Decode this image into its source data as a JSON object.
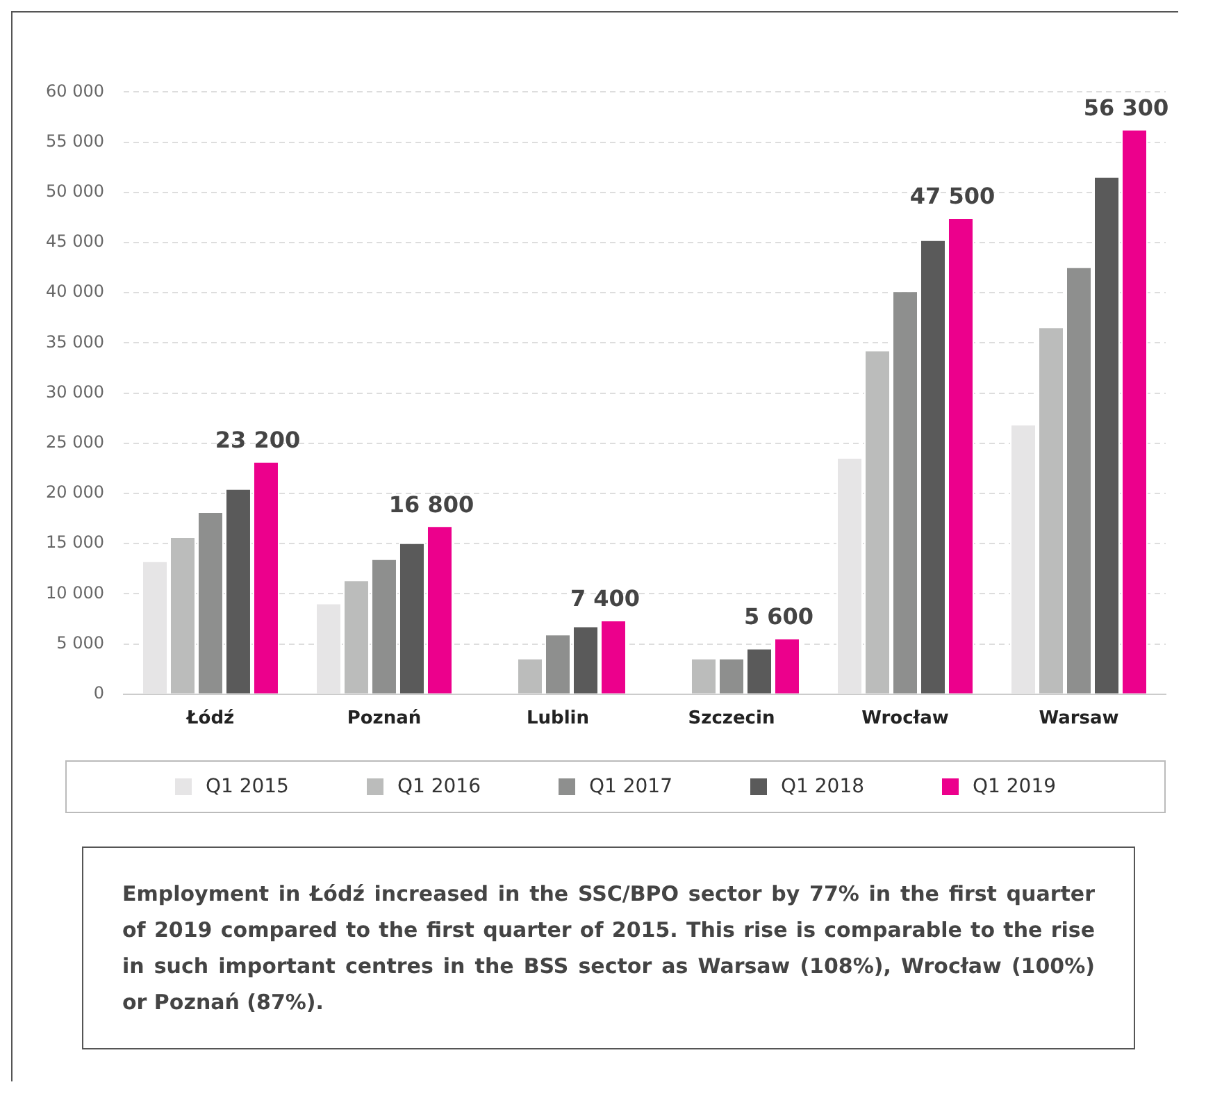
{
  "chart_data": {
    "type": "bar",
    "categories": [
      "Łódź",
      "Poznań",
      "Lublin",
      "Szczecin",
      "Wrocław",
      "Warsaw"
    ],
    "series": [
      {
        "name": "Q1 2015",
        "color": "#e6e5e6",
        "values": [
          13300,
          9100,
          null,
          null,
          23600,
          26900
        ]
      },
      {
        "name": "Q1 2016",
        "color": "#bbbcbb",
        "values": [
          15700,
          11400,
          3600,
          3600,
          34300,
          36600
        ]
      },
      {
        "name": "Q1 2017",
        "color": "#8e8f8e",
        "values": [
          18200,
          13500,
          6000,
          3600,
          40200,
          42600
        ]
      },
      {
        "name": "Q1 2018",
        "color": "#5a5a5a",
        "values": [
          20500,
          15100,
          6800,
          4600,
          45300,
          51600
        ]
      },
      {
        "name": "Q1 2019",
        "color": "#ec008c",
        "values": [
          23200,
          16800,
          7400,
          5600,
          47500,
          56300
        ],
        "value_labels": [
          "23 200",
          "16 800",
          "7 400",
          "5 600",
          "47 500",
          "56 300"
        ]
      }
    ],
    "ylim": [
      0,
      60000
    ],
    "yticks": [
      {
        "value": 0,
        "label": "0"
      },
      {
        "value": 5000,
        "label": "5 000"
      },
      {
        "value": 10000,
        "label": "10 000"
      },
      {
        "value": 15000,
        "label": "15 000"
      },
      {
        "value": 20000,
        "label": "20 000"
      },
      {
        "value": 25000,
        "label": "25 000"
      },
      {
        "value": 30000,
        "label": "30 000"
      },
      {
        "value": 35000,
        "label": "35 000"
      },
      {
        "value": 40000,
        "label": "40 000"
      },
      {
        "value": 45000,
        "label": "45 000"
      },
      {
        "value": 50000,
        "label": "50 000"
      },
      {
        "value": 55000,
        "label": "55 000"
      },
      {
        "value": 60000,
        "label": "60 000"
      }
    ],
    "grid": "y",
    "legend": "bottom",
    "annotations": [
      "Employment in Łódź increased in the SSC/BPO sector by 77% in the first quarter of 2019 compared to the first quarter of 2015. This rise is comparable to the rise in such important centres in the BSS sector as Warsaw (108%), Wrocław (100%) or Poznań (87%)."
    ]
  }
}
